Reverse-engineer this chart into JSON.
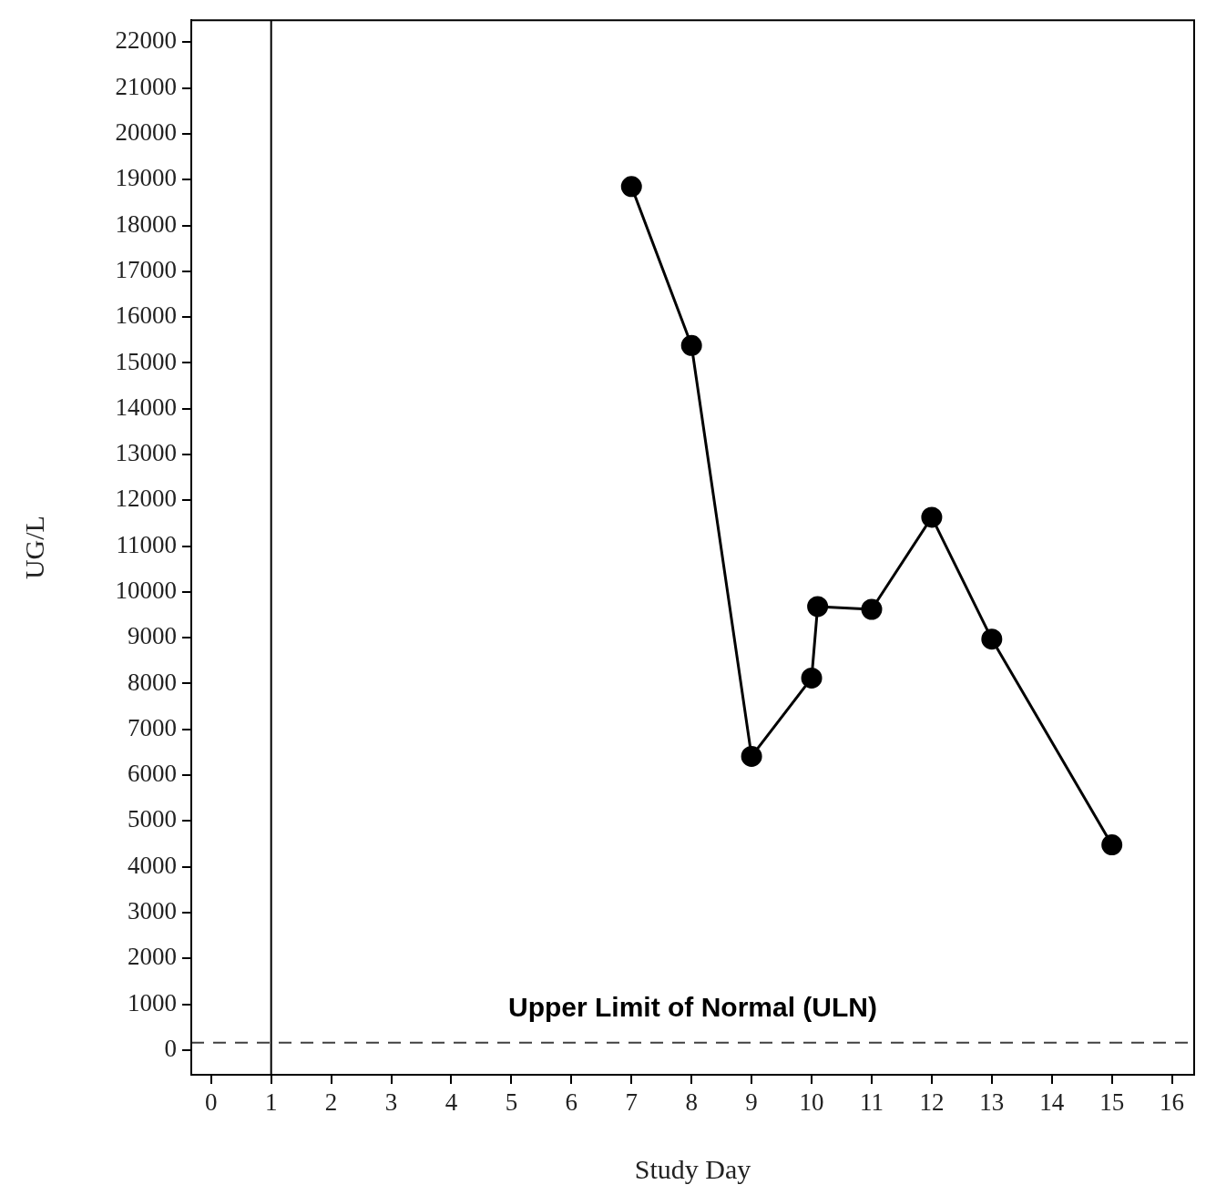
{
  "chart_data": {
    "type": "line",
    "xlabel": "Study Day",
    "ylabel": "UG/L",
    "x": [
      7,
      8,
      9,
      10,
      10.1,
      11,
      12,
      13,
      15
    ],
    "series": [
      {
        "color": "#000000",
        "values": [
          18850,
          15380,
          6410,
          8120,
          9680,
          9620,
          11630,
          8970,
          4480
        ]
      }
    ],
    "xlim": [
      -0.33,
      16.37
    ],
    "xticks": [
      0,
      1,
      2,
      3,
      4,
      5,
      6,
      7,
      8,
      9,
      10,
      11,
      12,
      13,
      14,
      15,
      16
    ],
    "ylim": [
      -540,
      22480
    ],
    "yticks": [
      0,
      1000,
      2000,
      3000,
      4000,
      5000,
      6000,
      7000,
      8000,
      9000,
      10000,
      11000,
      12000,
      13000,
      14000,
      15000,
      16000,
      17000,
      18000,
      19000,
      20000,
      21000,
      22000
    ],
    "ref_lines": [
      {
        "axis": "y",
        "value": 160,
        "label": "Upper Limit of Normal (ULN)",
        "color": "#404040",
        "line_style": "dashed"
      },
      {
        "axis": "x",
        "value": 1,
        "color": "#000000",
        "line_style": "solid"
      }
    ],
    "marker": "circle",
    "line_style": "solid",
    "legend": false
  }
}
